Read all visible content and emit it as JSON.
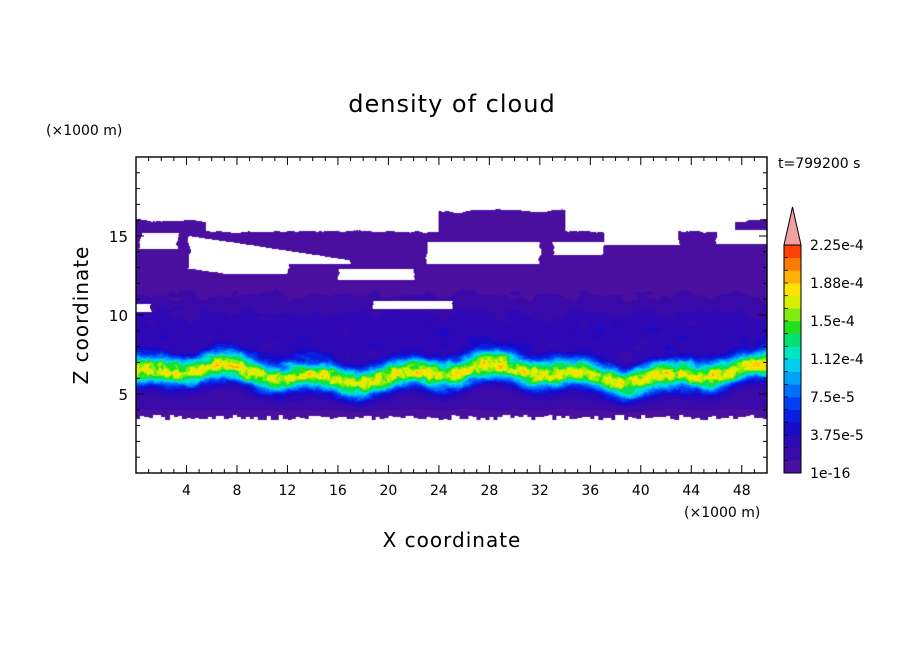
{
  "chart_data": {
    "type": "heatmap",
    "title": "density of cloud",
    "time_label": "t=799200 s",
    "xlabel": "X coordinate",
    "ylabel": "Z coordinate",
    "x_unit": "(×1000 m)",
    "y_unit": "(×1000 m)",
    "xlim": [
      0,
      50
    ],
    "ylim": [
      0,
      20
    ],
    "x_ticks": [
      4,
      8,
      12,
      16,
      20,
      24,
      28,
      32,
      36,
      40,
      44,
      48
    ],
    "y_ticks": [
      5,
      10,
      15
    ],
    "colorbar": {
      "labels": [
        "1e-16",
        "3.75e-5",
        "7.5e-5",
        "1.12e-4",
        "1.5e-4",
        "1.88e-4",
        "2.25e-4"
      ],
      "label_values": [
        0,
        3.75e-05,
        7.5e-05,
        0.000112,
        0.00015,
        0.000188,
        0.000225
      ],
      "levels": 18,
      "max_value": 0.00024375,
      "extend_max": true,
      "colors": [
        "#4b0fa0",
        "#3a0aa8",
        "#2d08b4",
        "#1a0ac8",
        "#0a1ee0",
        "#0040f0",
        "#0070ff",
        "#00a0ff",
        "#00ccf0",
        "#00e6c0",
        "#00e070",
        "#20e020",
        "#80ec10",
        "#d8f000",
        "#ffe000",
        "#ffb000",
        "#ff7a00",
        "#ff4000"
      ],
      "extend_color": "#f4a0a0"
    },
    "field_summary": {
      "cloud_base_km": 3.5,
      "core_layer_km": [
        5.5,
        7.0
      ],
      "core_max_density": 0.000185,
      "upper_layer_top_km": 16.2
    }
  }
}
